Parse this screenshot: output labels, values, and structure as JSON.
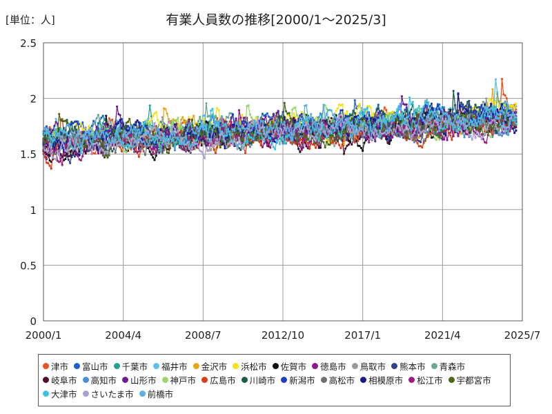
{
  "header": {
    "unit": "[単位：人]",
    "title": "有業人員数の推移[2000/1～2025/3]"
  },
  "chart_data": {
    "type": "line",
    "title": "有業人員数の推移[2000/1～2025/3]",
    "unit_label": "[単位：人]",
    "xlabel": "",
    "ylabel": "",
    "ylim": [
      0,
      2.5
    ],
    "yticks": [
      0,
      0.5,
      1,
      1.5,
      2,
      2.5
    ],
    "ytick_labels": [
      "0",
      "0.5",
      "1",
      "1.5",
      "2",
      "2.5"
    ],
    "xtick_labels": [
      "2000/1",
      "2004/4",
      "2008/7",
      "2012/10",
      "2017/1",
      "2021/4",
      "2025/7"
    ],
    "x_start": "2000/1",
    "x_end": "2025/7",
    "period": "monthly",
    "grid": true,
    "legend_position": "bottom",
    "series": [
      {
        "name": "津市",
        "color": "#e8531f"
      },
      {
        "name": "富山市",
        "color": "#1f5fd6"
      },
      {
        "name": "千葉市",
        "color": "#1fa58a"
      },
      {
        "name": "福井市",
        "color": "#5bbfe8"
      },
      {
        "name": "金沢市",
        "color": "#e6a817"
      },
      {
        "name": "浜松市",
        "color": "#f2e31a"
      },
      {
        "name": "佐賀市",
        "color": "#111111"
      },
      {
        "name": "徳島市",
        "color": "#8a1a8e"
      },
      {
        "name": "鳥取市",
        "color": "#9a9a9a"
      },
      {
        "name": "熊本市",
        "color": "#2f3f8f"
      },
      {
        "name": "青森市",
        "color": "#6aa894"
      },
      {
        "name": "岐阜市",
        "color": "#4a0f2a"
      },
      {
        "name": "高知市",
        "color": "#4a8fd6"
      },
      {
        "name": "山形市",
        "color": "#6a1f8e"
      },
      {
        "name": "神戸市",
        "color": "#9ad66a"
      },
      {
        "name": "広島市",
        "color": "#d6401a"
      },
      {
        "name": "川崎市",
        "color": "#1f5a4a"
      },
      {
        "name": "新潟市",
        "color": "#1f3fbf"
      },
      {
        "name": "高松市",
        "color": "#707070"
      },
      {
        "name": "相模原市",
        "color": "#1a1a8a"
      },
      {
        "name": "松江市",
        "color": "#9a1f7a"
      },
      {
        "name": "宇都宮市",
        "color": "#4a6a1a"
      },
      {
        "name": "大津市",
        "color": "#3ac3e3"
      },
      {
        "name": "さいたま市",
        "color": "#aaa0d6"
      },
      {
        "name": "前橋市",
        "color": "#5ab0e0"
      }
    ],
    "series_profile": {
      "base": [
        [
          2000,
          1.6
        ],
        [
          2005,
          1.66
        ],
        [
          2010,
          1.68
        ],
        [
          2015,
          1.72
        ],
        [
          2020,
          1.78
        ],
        [
          2025,
          1.82
        ]
      ],
      "noise": 0.14
    }
  }
}
